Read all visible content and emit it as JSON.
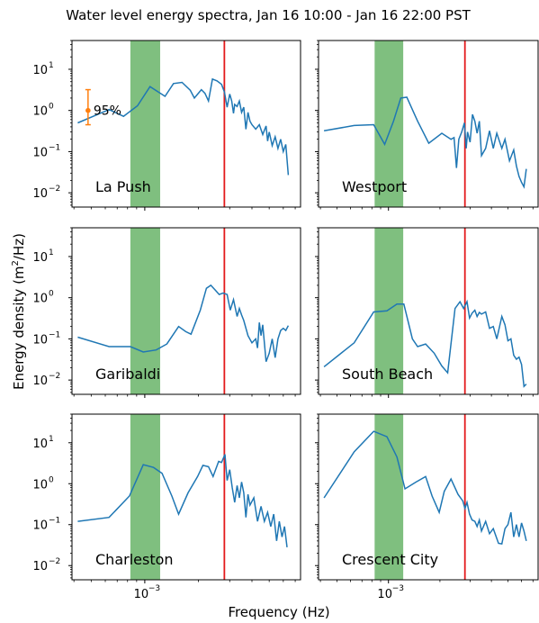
{
  "chart_data": {
    "type": "line",
    "title": "Water level energy spectra, Jan 16 10:00 - Jan 16 22:00 PST",
    "xlabel": "Frequency (Hz)",
    "ylabel_prefix": "Energy density (m",
    "ylabel_sup": "2",
    "ylabel_suffix": "/Hz)",
    "x_scale": "log",
    "y_scale": "log",
    "xlim": [
      0.00039,
      0.0075
    ],
    "ylim": [
      0.0045,
      50
    ],
    "x_tick_label": "10",
    "x_tick_exp": "−3",
    "y_ticks": [
      {
        "value": 0.01,
        "base": "10",
        "exp": "−2"
      },
      {
        "value": 0.1,
        "base": "10",
        "exp": "−1"
      },
      {
        "value": 1,
        "label": "10",
        "exp": "0"
      },
      {
        "value": 10,
        "label": "10",
        "exp": "1"
      }
    ],
    "shaded_band": {
      "from": 0.00083,
      "to": 0.00122,
      "color": "#7fbf7f"
    },
    "red_line_x": 0.0028,
    "line_color": "#1f77b4",
    "red_color": "#e31a1c",
    "confidence": {
      "label": "95%",
      "color": "#ff7f0e",
      "center": 1.0,
      "low": 0.45,
      "high": 3.2,
      "x": 0.00048
    },
    "panels": [
      {
        "name": "La Push",
        "x": [
          0.00042,
          0.00063,
          0.00076,
          0.00091,
          0.00107,
          0.0013,
          0.00145,
          0.00162,
          0.0018,
          0.0019,
          0.00208,
          0.00218,
          0.00228,
          0.0024,
          0.00255,
          0.0027,
          0.0028,
          0.0029,
          0.003,
          0.00308,
          0.00315,
          0.0032,
          0.0033,
          0.0034,
          0.0035,
          0.0036,
          0.0037,
          0.0038,
          0.0039,
          0.004,
          0.0042,
          0.0044,
          0.0046,
          0.0048,
          0.0049,
          0.005,
          0.0052,
          0.0054,
          0.0056,
          0.0058,
          0.006,
          0.0062,
          0.0064
        ],
        "y": [
          0.5,
          1.05,
          0.72,
          1.3,
          3.8,
          2.2,
          4.5,
          4.8,
          3.1,
          2.0,
          3.2,
          2.6,
          1.7,
          5.8,
          5.2,
          4.3,
          2.8,
          1.2,
          2.5,
          1.7,
          0.85,
          1.4,
          1.25,
          1.7,
          0.9,
          1.2,
          0.35,
          0.9,
          0.55,
          0.45,
          0.35,
          0.45,
          0.26,
          0.42,
          0.18,
          0.3,
          0.14,
          0.23,
          0.12,
          0.2,
          0.1,
          0.15,
          0.027
        ],
        "label_pos": "bottom-left",
        "show_ci": true
      },
      {
        "name": "Westport",
        "x": [
          0.00042,
          0.00063,
          0.00082,
          0.00095,
          0.00107,
          0.00118,
          0.00128,
          0.00148,
          0.00172,
          0.00205,
          0.00232,
          0.00242,
          0.0025,
          0.00258,
          0.00268,
          0.00278,
          0.00285,
          0.0029,
          0.003,
          0.0031,
          0.0032,
          0.0033,
          0.0034,
          0.0035,
          0.0037,
          0.0039,
          0.0041,
          0.0043,
          0.0046,
          0.0048,
          0.0051,
          0.0054,
          0.0056,
          0.0058,
          0.006,
          0.0062,
          0.0064
        ],
        "y": [
          0.32,
          0.43,
          0.45,
          0.15,
          0.55,
          2.0,
          2.1,
          0.55,
          0.16,
          0.28,
          0.2,
          0.22,
          0.04,
          0.2,
          0.3,
          0.5,
          0.12,
          0.3,
          0.17,
          0.8,
          0.55,
          0.28,
          0.55,
          0.08,
          0.12,
          0.32,
          0.12,
          0.28,
          0.12,
          0.2,
          0.06,
          0.11,
          0.045,
          0.025,
          0.018,
          0.014,
          0.038
        ],
        "label_pos": "bottom-left",
        "show_ci": false
      },
      {
        "name": "Garibaldi",
        "x": [
          0.00042,
          0.00063,
          0.00083,
          0.00098,
          0.00116,
          0.00133,
          0.00155,
          0.0017,
          0.00182,
          0.00205,
          0.00222,
          0.00235,
          0.0025,
          0.00262,
          0.00275,
          0.0029,
          0.00302,
          0.00315,
          0.0033,
          0.0034,
          0.0035,
          0.0036,
          0.0038,
          0.004,
          0.0042,
          0.0043,
          0.0044,
          0.0045,
          0.0046,
          0.0048,
          0.005,
          0.0052,
          0.0054,
          0.0056,
          0.0058,
          0.006,
          0.0062,
          0.0064
        ],
        "y": [
          0.11,
          0.065,
          0.065,
          0.048,
          0.054,
          0.075,
          0.2,
          0.15,
          0.13,
          0.5,
          1.7,
          2.0,
          1.5,
          1.2,
          1.3,
          1.2,
          0.5,
          0.9,
          0.35,
          0.55,
          0.38,
          0.28,
          0.12,
          0.08,
          0.1,
          0.06,
          0.25,
          0.12,
          0.22,
          0.028,
          0.045,
          0.1,
          0.035,
          0.1,
          0.16,
          0.18,
          0.16,
          0.21
        ],
        "label_pos": "bottom-left",
        "show_ci": false
      },
      {
        "name": "South Beach",
        "x": [
          0.00042,
          0.00063,
          0.00082,
          0.00098,
          0.00112,
          0.00123,
          0.00138,
          0.00148,
          0.00165,
          0.00185,
          0.00205,
          0.00222,
          0.00245,
          0.00262,
          0.00275,
          0.00288,
          0.00298,
          0.00308,
          0.0032,
          0.0033,
          0.0034,
          0.0035,
          0.0037,
          0.0039,
          0.0041,
          0.0043,
          0.0046,
          0.0048,
          0.005,
          0.0052,
          0.0054,
          0.0056,
          0.0058,
          0.006,
          0.0062,
          0.0064
        ],
        "y": [
          0.021,
          0.08,
          0.45,
          0.48,
          0.7,
          0.7,
          0.1,
          0.065,
          0.075,
          0.045,
          0.022,
          0.015,
          0.55,
          0.8,
          0.55,
          0.8,
          0.32,
          0.42,
          0.5,
          0.35,
          0.44,
          0.4,
          0.45,
          0.18,
          0.2,
          0.1,
          0.35,
          0.22,
          0.09,
          0.1,
          0.04,
          0.032,
          0.036,
          0.024,
          0.007,
          0.008
        ],
        "label_pos": "bottom-left",
        "show_ci": false
      },
      {
        "name": "Charleston",
        "x": [
          0.00042,
          0.00063,
          0.00082,
          0.00098,
          0.00112,
          0.00125,
          0.00142,
          0.00155,
          0.00175,
          0.00198,
          0.00212,
          0.00228,
          0.00242,
          0.0026,
          0.0027,
          0.00282,
          0.0029,
          0.003,
          0.0031,
          0.0032,
          0.0033,
          0.0034,
          0.0035,
          0.0036,
          0.0037,
          0.0038,
          0.0039,
          0.0041,
          0.0043,
          0.0045,
          0.0047,
          0.0049,
          0.0051,
          0.0053,
          0.0055,
          0.0057,
          0.0059,
          0.0061,
          0.0063
        ],
        "y": [
          0.12,
          0.15,
          0.5,
          2.9,
          2.5,
          1.8,
          0.5,
          0.18,
          0.6,
          1.5,
          2.8,
          2.6,
          1.5,
          3.5,
          3.3,
          5.2,
          1.2,
          2.2,
          0.8,
          0.35,
          0.9,
          0.45,
          1.1,
          0.6,
          0.15,
          0.55,
          0.3,
          0.45,
          0.12,
          0.28,
          0.12,
          0.2,
          0.09,
          0.18,
          0.04,
          0.12,
          0.05,
          0.09,
          0.028
        ],
        "label_pos": "bottom-left",
        "show_ci": false
      },
      {
        "name": "Crescent City",
        "x": [
          0.00042,
          0.00063,
          0.00082,
          0.00098,
          0.00112,
          0.00125,
          0.00145,
          0.00165,
          0.0018,
          0.00198,
          0.00212,
          0.00232,
          0.00255,
          0.00272,
          0.0028,
          0.00288,
          0.00298,
          0.00308,
          0.0032,
          0.0033,
          0.0034,
          0.0035,
          0.0037,
          0.0039,
          0.0041,
          0.0044,
          0.0046,
          0.0048,
          0.005,
          0.0052,
          0.0054,
          0.0056,
          0.0058,
          0.006,
          0.0062,
          0.0064
        ],
        "y": [
          0.45,
          6.0,
          19.0,
          14.0,
          4.5,
          0.75,
          1.1,
          1.5,
          0.5,
          0.2,
          0.65,
          1.3,
          0.55,
          0.38,
          0.25,
          0.35,
          0.18,
          0.13,
          0.12,
          0.09,
          0.13,
          0.07,
          0.12,
          0.06,
          0.08,
          0.035,
          0.034,
          0.08,
          0.1,
          0.2,
          0.05,
          0.1,
          0.05,
          0.11,
          0.07,
          0.04
        ],
        "label_pos": "bottom-left",
        "show_ci": false
      }
    ]
  }
}
